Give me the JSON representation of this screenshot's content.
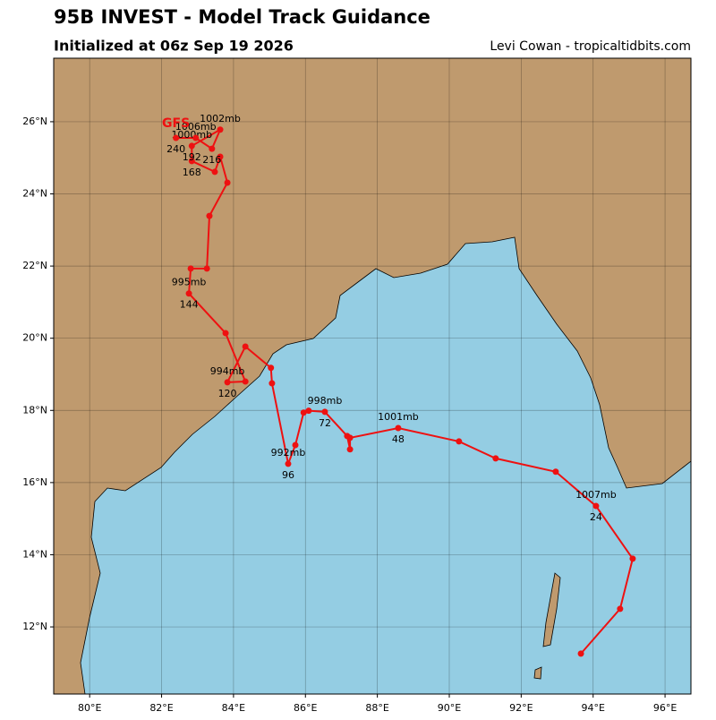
{
  "chart_data": {
    "type": "map",
    "title": "95B INVEST - Model Track Guidance",
    "subtitle": "Initialized at 06z Sep 19 2026",
    "credit": "Levi Cowan - tropicaltidbits.com",
    "xlim": [
      79.0,
      96.72
    ],
    "ylim": [
      10.14,
      27.76
    ],
    "xticks": [
      {
        "value": 80,
        "label": "80°E"
      },
      {
        "value": 82,
        "label": "82°E"
      },
      {
        "value": 84,
        "label": "84°E"
      },
      {
        "value": 86,
        "label": "86°E"
      },
      {
        "value": 88,
        "label": "88°E"
      },
      {
        "value": 90,
        "label": "90°E"
      },
      {
        "value": 92,
        "label": "92°E"
      },
      {
        "value": 94,
        "label": "94°E"
      },
      {
        "value": 96,
        "label": "96°E"
      }
    ],
    "yticks": [
      {
        "value": 12,
        "label": "12°N"
      },
      {
        "value": 14,
        "label": "14°N"
      },
      {
        "value": 16,
        "label": "16°N"
      },
      {
        "value": 18,
        "label": "18°N"
      },
      {
        "value": 20,
        "label": "20°N"
      },
      {
        "value": 22,
        "label": "22°N"
      },
      {
        "value": 24,
        "label": "24°N"
      },
      {
        "value": 26,
        "label": "26°N"
      }
    ],
    "grid": true,
    "track": {
      "name": "GFS",
      "color": "#ee1111",
      "points": [
        {
          "lon": 93.66,
          "lat": 11.26
        },
        {
          "lon": 94.75,
          "lat": 12.5
        },
        {
          "lon": 95.1,
          "lat": 13.89
        },
        {
          "lon": 94.08,
          "lat": 15.35,
          "pressure": "1007mb",
          "hour": 24
        },
        {
          "lon": 92.96,
          "lat": 16.3
        },
        {
          "lon": 91.29,
          "lat": 16.67
        },
        {
          "lon": 90.27,
          "lat": 17.14
        },
        {
          "lon": 88.58,
          "lat": 17.51,
          "pressure": "1001mb",
          "hour": 48
        },
        {
          "lon": 87.24,
          "lat": 17.24
        },
        {
          "lon": 87.24,
          "lat": 16.92
        },
        {
          "lon": 87.16,
          "lat": 17.29
        },
        {
          "lon": 86.54,
          "lat": 17.96,
          "pressure": "998mb",
          "hour": 72
        },
        {
          "lon": 86.09,
          "lat": 17.99
        },
        {
          "lon": 85.95,
          "lat": 17.94
        },
        {
          "lon": 85.72,
          "lat": 17.04
        },
        {
          "lon": 85.52,
          "lat": 16.52,
          "pressure": "992mb",
          "hour": 96
        },
        {
          "lon": 85.07,
          "lat": 18.75
        },
        {
          "lon": 85.04,
          "lat": 19.18
        },
        {
          "lon": 84.33,
          "lat": 19.77
        },
        {
          "lon": 83.83,
          "lat": 18.78,
          "pressure": "994mb",
          "hour": 120
        },
        {
          "lon": 84.33,
          "lat": 18.8
        },
        {
          "lon": 83.78,
          "lat": 20.14
        },
        {
          "lon": 82.76,
          "lat": 21.24,
          "pressure": "995mb",
          "hour": 144
        },
        {
          "lon": 82.81,
          "lat": 21.93
        },
        {
          "lon": 83.26,
          "lat": 21.93
        },
        {
          "lon": 83.33,
          "lat": 23.39
        },
        {
          "lon": 83.83,
          "lat": 24.31
        },
        {
          "lon": 83.63,
          "lat": 25.03
        },
        {
          "lon": 83.48,
          "lat": 24.61
        },
        {
          "lon": 82.84,
          "lat": 24.91,
          "hour": 168
        },
        {
          "lon": 82.84,
          "lat": 25.33,
          "pressure": "1000mb",
          "hour": 192
        },
        {
          "lon": 83.63,
          "lat": 25.78,
          "pressure": "1002mb"
        },
        {
          "lon": 83.4,
          "lat": 25.25,
          "hour": 216
        },
        {
          "lon": 82.95,
          "lat": 25.55,
          "pressure": "1006mb"
        },
        {
          "lon": 82.4,
          "lat": 25.55,
          "hour": 240
        }
      ]
    }
  }
}
